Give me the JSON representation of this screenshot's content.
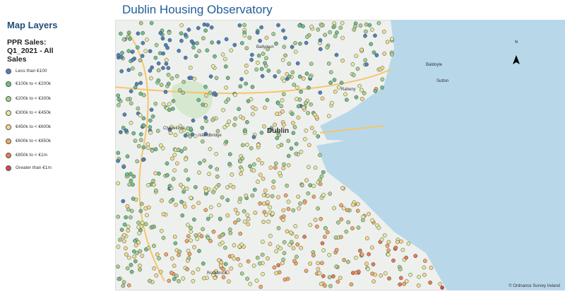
{
  "header": {
    "title": "Dublin Housing Observatory"
  },
  "sidebar": {
    "title": "Map Layers",
    "layer": "PPR Sales: Q1_2021 - All Sales",
    "legend": [
      {
        "label": "Less than €100",
        "color": "#4f81bd"
      },
      {
        "label": "€100k to < €200k",
        "color": "#6fbf8a"
      },
      {
        "label": "€200k to < €300k",
        "color": "#a9d18e"
      },
      {
        "label": "€300k to < €450k",
        "color": "#e4ec9e"
      },
      {
        "label": "€450k to < €600k",
        "color": "#f6d98c"
      },
      {
        "label": "€600k to < €850k",
        "color": "#f4a766"
      },
      {
        "label": "€850k to < €1m",
        "color": "#e77a57"
      },
      {
        "label": "Greater than €1m",
        "color": "#d9434f"
      }
    ]
  },
  "map": {
    "north": "N",
    "attribution": "© Ordnance Survey Ireland",
    "labels": [
      "Dublin",
      "Chapelizod",
      "Islandbridge",
      "Sutton",
      "Baldoyle",
      "Rockbrook",
      "Ballymun",
      "Raheny"
    ]
  }
}
